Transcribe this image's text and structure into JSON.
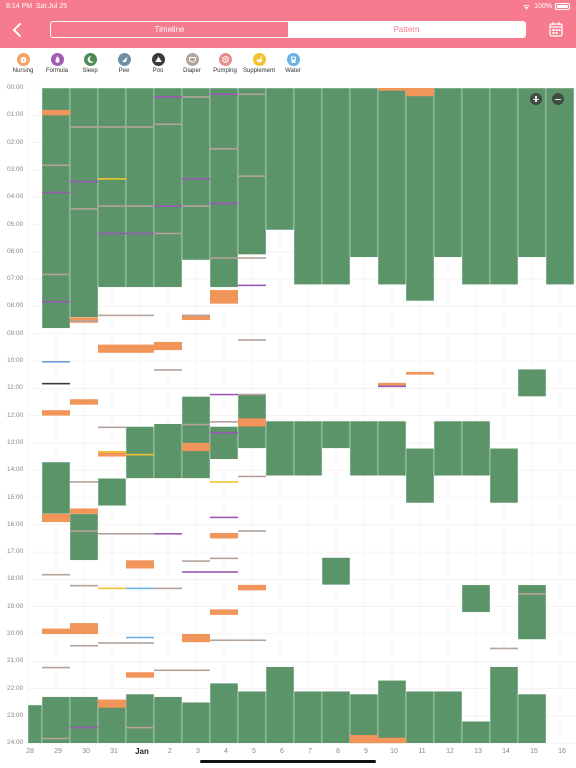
{
  "status_bar": {
    "time": "8:14 PM",
    "date": "Sat Jul 25",
    "battery": "100%"
  },
  "header": {
    "tabs": [
      {
        "label": "Timeline",
        "active": true
      },
      {
        "label": "Pattern",
        "active": false
      }
    ]
  },
  "legend": [
    {
      "label": "Nursing",
      "color": "#f4a261",
      "icon": "nursing-icon"
    },
    {
      "label": "Formula",
      "color": "#a45bb6",
      "icon": "bottle-icon"
    },
    {
      "label": "Sleep",
      "color": "#4f8a57",
      "icon": "moon-icon"
    },
    {
      "label": "Pee",
      "color": "#6f8fa6",
      "icon": "droplet-icon"
    },
    {
      "label": "Poo",
      "color": "#3b3b3b",
      "icon": "triangle-icon"
    },
    {
      "label": "Diaper",
      "color": "#b7a39a",
      "icon": "diaper-icon"
    },
    {
      "label": "Pumping",
      "color": "#e88d8d",
      "icon": "pump-icon"
    },
    {
      "label": "Supplement",
      "color": "#f2c230",
      "icon": "supplement-icon"
    },
    {
      "label": "Water",
      "color": "#6ab2e8",
      "icon": "water-icon"
    }
  ],
  "chart_data": {
    "type": "timeline",
    "y_ticks": [
      "00:00",
      "01:00",
      "02:00",
      "03:00",
      "04:00",
      "05:00",
      "06:00",
      "07:00",
      "08:00",
      "09:00",
      "10:00",
      "11:00",
      "12:00",
      "13:00",
      "14:00",
      "15:00",
      "16:00",
      "17:00",
      "18:00",
      "19:00",
      "20:00",
      "21:00",
      "22:00",
      "23:00",
      "24:00"
    ],
    "columns": [
      "28",
      "29",
      "30",
      "31",
      "Jan",
      "2",
      "3",
      "4",
      "5",
      "6",
      "7",
      "8",
      "9",
      "10",
      "11",
      "12",
      "13",
      "14",
      "15",
      "16"
    ],
    "colors": {
      "sleep": "#5a9468",
      "nursing": "#f2955a",
      "formula": "#9b59b6",
      "pee": "#6f9fd8",
      "poo": "#3b3b3b",
      "diaper": "#b3a39b",
      "supplement": "#f2c230",
      "water": "#6ab2e8"
    },
    "sleep": [
      [
        0,
        22.6,
        24
      ],
      [
        1,
        0,
        8.8
      ],
      [
        1,
        13.7,
        15.6
      ],
      [
        1,
        22.3,
        24
      ],
      [
        2,
        0,
        8.4
      ],
      [
        2,
        15.6,
        17.3
      ],
      [
        2,
        22.3,
        24
      ],
      [
        3,
        0,
        7.3
      ],
      [
        3,
        14.3,
        15.3
      ],
      [
        3,
        22.6,
        24
      ],
      [
        4,
        0,
        7.3
      ],
      [
        4,
        12.4,
        14.3
      ],
      [
        4,
        22.2,
        24
      ],
      [
        5,
        0,
        7.3
      ],
      [
        5,
        12.3,
        14.3
      ],
      [
        5,
        22.3,
        24
      ],
      [
        6,
        0,
        6.3
      ],
      [
        6,
        11.3,
        14.3
      ],
      [
        6,
        22.5,
        24
      ],
      [
        7,
        0,
        7.3
      ],
      [
        7,
        12.4,
        13.6
      ],
      [
        7,
        21.8,
        24
      ],
      [
        8,
        0,
        6.1
      ],
      [
        8,
        11.2,
        13.2
      ],
      [
        8,
        22.1,
        24
      ],
      [
        9,
        0,
        5.2
      ],
      [
        9,
        12.2,
        14.2
      ],
      [
        9,
        21.2,
        24
      ],
      [
        10,
        0,
        7.2
      ],
      [
        10,
        12.2,
        14.2
      ],
      [
        10,
        22.1,
        24
      ],
      [
        11,
        0,
        7.2
      ],
      [
        11,
        12.2,
        13.2
      ],
      [
        11,
        17.2,
        18.2
      ],
      [
        11,
        22.1,
        24
      ],
      [
        12,
        0,
        6.2
      ],
      [
        12,
        12.2,
        14.2
      ],
      [
        12,
        22.2,
        24
      ],
      [
        13,
        0,
        7.2
      ],
      [
        13,
        12.2,
        14.2
      ],
      [
        13,
        21.7,
        24
      ],
      [
        14,
        0,
        7.8
      ],
      [
        14,
        13.2,
        15.2
      ],
      [
        14,
        22.1,
        24
      ],
      [
        15,
        0,
        6.2
      ],
      [
        15,
        12.2,
        14.2
      ],
      [
        15,
        22.1,
        24
      ],
      [
        16,
        0,
        7.2
      ],
      [
        16,
        12.2,
        14.2
      ],
      [
        16,
        18.2,
        19.2
      ],
      [
        16,
        23.2,
        24
      ],
      [
        17,
        0,
        7.2
      ],
      [
        17,
        13.2,
        15.2
      ],
      [
        17,
        21.2,
        24
      ],
      [
        18,
        0,
        6.2
      ],
      [
        18,
        10.3,
        11.3
      ],
      [
        18,
        18.2,
        20.2
      ],
      [
        18,
        22.2,
        24
      ],
      [
        19,
        0,
        7.2
      ]
    ],
    "blocks": [
      [
        "nursing",
        1,
        0.8,
        1.0
      ],
      [
        "nursing",
        1,
        11.8,
        12.0
      ],
      [
        "nursing",
        1,
        15.6,
        15.9
      ],
      [
        "nursing",
        1,
        19.8,
        20.0
      ],
      [
        "nursing",
        2,
        8.4,
        8.6
      ],
      [
        "nursing",
        2,
        11.4,
        11.6
      ],
      [
        "nursing",
        2,
        15.4,
        15.6
      ],
      [
        "nursing",
        2,
        19.6,
        20.0
      ],
      [
        "nursing",
        3,
        9.4,
        9.7
      ],
      [
        "nursing",
        3,
        13.3,
        13.5
      ],
      [
        "nursing",
        3,
        22.4,
        22.7
      ],
      [
        "nursing",
        4,
        9.4,
        9.7
      ],
      [
        "nursing",
        4,
        17.3,
        17.6
      ],
      [
        "nursing",
        4,
        21.4,
        21.6
      ],
      [
        "nursing",
        5,
        9.3,
        9.6
      ],
      [
        "nursing",
        6,
        8.3,
        8.5
      ],
      [
        "nursing",
        6,
        13.0,
        13.3
      ],
      [
        "nursing",
        6,
        20.0,
        20.3
      ],
      [
        "nursing",
        7,
        7.4,
        7.9
      ],
      [
        "nursing",
        7,
        16.3,
        16.5
      ],
      [
        "nursing",
        7,
        19.1,
        19.3
      ],
      [
        "nursing",
        8,
        12.1,
        12.4
      ],
      [
        "nursing",
        8,
        18.2,
        18.4
      ],
      [
        "nursing",
        12,
        23.7,
        24
      ],
      [
        "nursing",
        13,
        0,
        0.1
      ],
      [
        "nursing",
        13,
        10.8,
        10.9
      ],
      [
        "nursing",
        13,
        23.8,
        24
      ],
      [
        "nursing",
        14,
        0,
        0.3
      ],
      [
        "nursing",
        14,
        10.4,
        10.5
      ]
    ],
    "lines": [
      [
        "pee",
        1,
        10.0
      ],
      [
        "poo",
        1,
        10.8
      ],
      [
        "diaper",
        1,
        2.8
      ],
      [
        "formula",
        1,
        3.8
      ],
      [
        "diaper",
        1,
        6.8
      ],
      [
        "formula",
        1,
        7.8
      ],
      [
        "diaper",
        1,
        17.8
      ],
      [
        "diaper",
        1,
        21.2
      ],
      [
        "diaper",
        1,
        23.8
      ],
      [
        "diaper",
        2,
        1.4
      ],
      [
        "formula",
        2,
        3.4
      ],
      [
        "diaper",
        2,
        4.4
      ],
      [
        "diaper",
        2,
        8.5
      ],
      [
        "diaper",
        2,
        14.4
      ],
      [
        "diaper",
        2,
        16.2
      ],
      [
        "diaper",
        2,
        18.2
      ],
      [
        "diaper",
        2,
        20.4
      ],
      [
        "formula",
        2,
        23.4
      ],
      [
        "diaper",
        3,
        1.4
      ],
      [
        "supplement",
        3,
        3.3
      ],
      [
        "diaper",
        3,
        4.3
      ],
      [
        "formula",
        3,
        5.3
      ],
      [
        "diaper",
        3,
        8.3
      ],
      [
        "diaper",
        3,
        12.4
      ],
      [
        "supplement",
        3,
        13.3
      ],
      [
        "diaper",
        3,
        16.3
      ],
      [
        "supplement",
        3,
        18.3
      ],
      [
        "diaper",
        3,
        20.3
      ],
      [
        "diaper",
        4,
        1.4
      ],
      [
        "diaper",
        4,
        4.3
      ],
      [
        "formula",
        4,
        5.3
      ],
      [
        "diaper",
        4,
        8.3
      ],
      [
        "supplement",
        4,
        13.4
      ],
      [
        "diaper",
        4,
        16.3
      ],
      [
        "water",
        4,
        18.3
      ],
      [
        "water",
        4,
        20.1
      ],
      [
        "diaper",
        4,
        20.3
      ],
      [
        "diaper",
        4,
        23.4
      ],
      [
        "formula",
        5,
        0.3
      ],
      [
        "diaper",
        5,
        1.3
      ],
      [
        "formula",
        5,
        4.3
      ],
      [
        "diaper",
        5,
        5.3
      ],
      [
        "diaper",
        5,
        10.3
      ],
      [
        "formula",
        5,
        16.3
      ],
      [
        "diaper",
        5,
        18.3
      ],
      [
        "diaper",
        5,
        21.3
      ],
      [
        "diaper",
        6,
        0.3
      ],
      [
        "formula",
        6,
        3.3
      ],
      [
        "diaper",
        6,
        4.3
      ],
      [
        "diaper",
        6,
        8.3
      ],
      [
        "diaper",
        6,
        12.3
      ],
      [
        "diaper",
        6,
        17.3
      ],
      [
        "formula",
        6,
        17.7
      ],
      [
        "diaper",
        6,
        21.3
      ],
      [
        "formula",
        7,
        0.2
      ],
      [
        "diaper",
        7,
        2.2
      ],
      [
        "formula",
        7,
        4.2
      ],
      [
        "diaper",
        7,
        6.2
      ],
      [
        "formula",
        7,
        11.2
      ],
      [
        "diaper",
        7,
        12.2
      ],
      [
        "formula",
        7,
        12.6
      ],
      [
        "supplement",
        7,
        14.4
      ],
      [
        "formula",
        7,
        15.7
      ],
      [
        "diaper",
        7,
        17.2
      ],
      [
        "formula",
        7,
        17.7
      ],
      [
        "diaper",
        7,
        20.2
      ],
      [
        "diaper",
        8,
        0.2
      ],
      [
        "diaper",
        8,
        3.2
      ],
      [
        "diaper",
        8,
        6.2
      ],
      [
        "formula",
        8,
        7.2
      ],
      [
        "diaper",
        8,
        9.2
      ],
      [
        "diaper",
        8,
        11.2
      ],
      [
        "diaper",
        8,
        14.2
      ],
      [
        "diaper",
        8,
        16.2
      ],
      [
        "diaper",
        8,
        20.2
      ],
      [
        "formula",
        13,
        10.9
      ],
      [
        "diaper",
        17,
        20.5
      ],
      [
        "diaper",
        18,
        18.5
      ]
    ]
  }
}
